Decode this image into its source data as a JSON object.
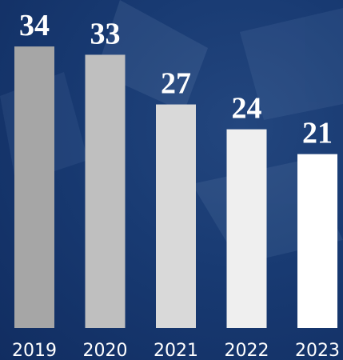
{
  "chart_data": {
    "type": "bar",
    "categories": [
      "2019",
      "2020",
      "2021",
      "2022",
      "2023"
    ],
    "values": [
      34,
      33,
      27,
      24,
      21
    ],
    "colors": [
      "#a6a6a6",
      "#bfbfbf",
      "#d9d9d9",
      "#efefef",
      "#ffffff"
    ],
    "data_labels": true
  }
}
